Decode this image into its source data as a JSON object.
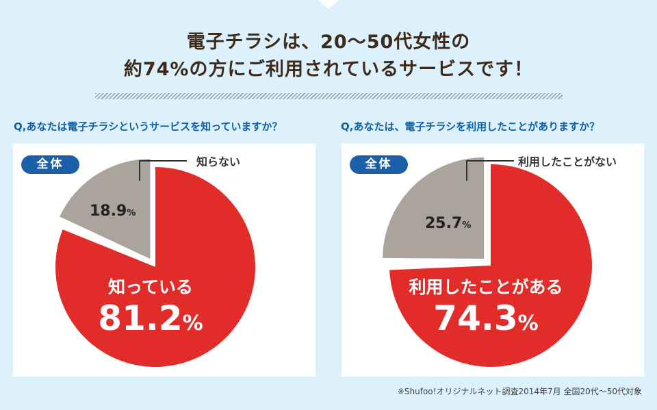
{
  "title": {
    "line1": "電子チラシは、20～50代女性の",
    "line2": "約74%の方にご利用されているサービスです！"
  },
  "chart_data": [
    {
      "type": "pie",
      "question": "Q,あなたは電子チラシというサービスを知っていますか？",
      "badge": "全体",
      "slices": [
        {
          "label": "知っている",
          "value": 81.2,
          "display": "81.2",
          "color": "#e22c2a"
        },
        {
          "label": "知らない",
          "value": 18.9,
          "display": "18.9",
          "color": "#aaa49c"
        }
      ],
      "unit": "%"
    },
    {
      "type": "pie",
      "question": "Q,あなたは、電子チラシを利用したことがありますか？",
      "badge": "全体",
      "slices": [
        {
          "label": "利用したことがある",
          "value": 74.3,
          "display": "74.3",
          "color": "#e22c2a"
        },
        {
          "label": "利用したことがない",
          "value": 25.7,
          "display": "25.7",
          "color": "#aaa49c"
        }
      ],
      "unit": "%"
    }
  ],
  "footnote": "※Shufoo!オリジナルネット調査2014年7月 全国20代～50代対象"
}
